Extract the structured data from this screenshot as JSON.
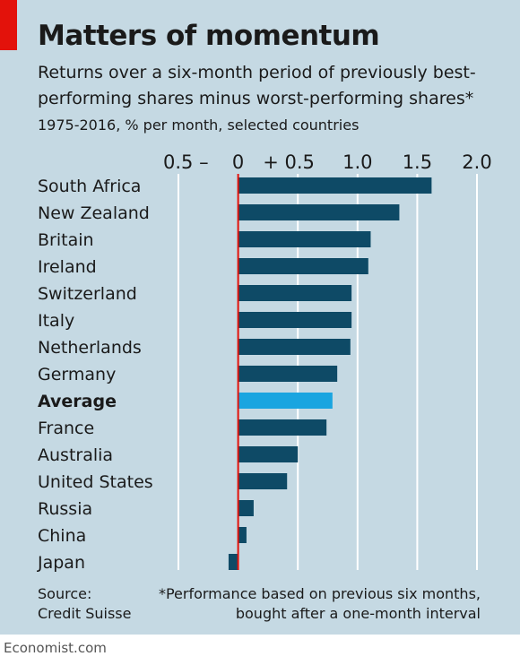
{
  "header": {
    "title": "Matters of momentum",
    "subtitle_line1": "Returns over a six-month period of previously best-",
    "subtitle_line2": "performing shares minus worst-performing shares*",
    "period": "1975-2016, % per month, selected countries"
  },
  "footer": {
    "source_line1": "Source:",
    "source_line2": "Credit Suisse",
    "note_line1": "*Performance based on previous six months,",
    "note_line2": "bought after a one-month interval",
    "brand": "Economist.com"
  },
  "colors": {
    "background": "#c5d9e3",
    "bar": "#0e4a66",
    "highlight": "#1aa5e0",
    "zero_line": "#e3120b",
    "accent_tag": "#e3120b"
  },
  "chart_data": {
    "type": "bar",
    "orientation": "horizontal",
    "title": "Matters of momentum",
    "xlabel": "",
    "ylabel": "",
    "xlim": [
      -0.5,
      2.0
    ],
    "x_ticks": [
      {
        "value": -0.5,
        "label": "0.5 –"
      },
      {
        "value": 0,
        "label": "0"
      },
      {
        "value": 0.5,
        "label": "+ 0.5"
      },
      {
        "value": 1.0,
        "label": "1.0"
      },
      {
        "value": 1.5,
        "label": "1.5"
      },
      {
        "value": 2.0,
        "label": "2.0"
      }
    ],
    "grid": true,
    "categories": [
      "South Africa",
      "New Zealand",
      "Britain",
      "Ireland",
      "Switzerland",
      "Italy",
      "Netherlands",
      "Germany",
      "Average",
      "France",
      "Australia",
      "United States",
      "Russia",
      "China",
      "Japan"
    ],
    "values": [
      1.62,
      1.35,
      1.11,
      1.09,
      0.95,
      0.95,
      0.94,
      0.83,
      0.79,
      0.74,
      0.5,
      0.41,
      0.13,
      0.07,
      -0.08
    ],
    "highlight": [
      "Average"
    ]
  }
}
